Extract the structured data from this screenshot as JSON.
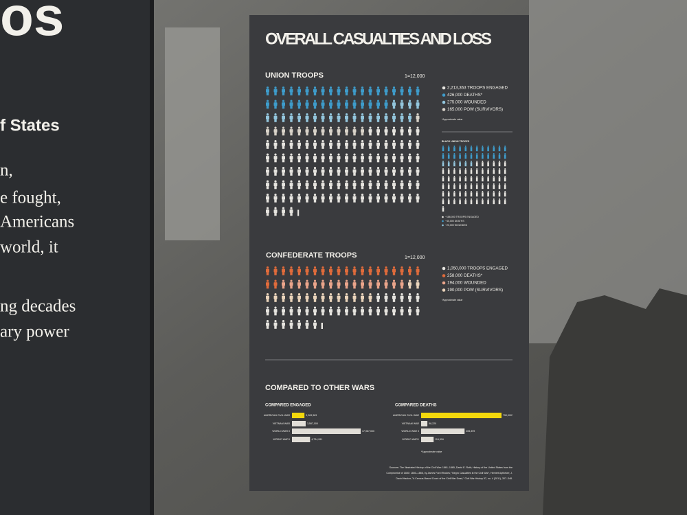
{
  "left_panel": {
    "heading": "os",
    "subheading": "f States",
    "lines": [
      "n,",
      "e fought,",
      "Americans",
      "world, it",
      "ng decades",
      "ary power"
    ]
  },
  "panel": {
    "title": "OVERALL CASUALTIES AND LOSS",
    "union": {
      "title": "UNION TROOPS",
      "unit": 12000,
      "unit_label": "1=12,000",
      "groups": [
        {
          "name": "engaged",
          "value": 2213363,
          "label": "2,213,363 TROOPS ENGAGED",
          "color": "#e6e4df"
        },
        {
          "name": "deaths",
          "value": 426000,
          "label": "426,000 DEATHS*",
          "color": "#3e9ccb"
        },
        {
          "name": "wounded",
          "value": 275000,
          "label": "275,000 WOUNDED",
          "color": "#93c6dd"
        },
        {
          "name": "pow",
          "value": 165000,
          "label": "165,000 POW (SURVIVORS)",
          "color": "#d9d3c9"
        }
      ],
      "note": "*Approximate value"
    },
    "black_union": {
      "title": "BLACK UNION TROOPS",
      "legend": [
        "~186,000 TROOPS ENGAGED",
        "~40,000 DEATHS",
        "~20,000 WOUNDED"
      ]
    },
    "confederate": {
      "title": "CONFEDERATE TROOPS",
      "unit": 12000,
      "unit_label": "1=12,000",
      "groups": [
        {
          "name": "engaged",
          "value": 1050000,
          "label": "1,050,000 TROOPS ENGAGED",
          "color": "#e6e4df"
        },
        {
          "name": "deaths",
          "value": 258000,
          "label": "258,000 DEATHS*",
          "color": "#e06b3b"
        },
        {
          "name": "wounded",
          "value": 194000,
          "label": "194,000 WOUNDED",
          "color": "#eba58b"
        },
        {
          "name": "pow",
          "value": 190000,
          "label": "190,000 POW (SURVIVORS)",
          "color": "#ead4bb"
        }
      ],
      "note": "*Approximate value"
    },
    "compare": {
      "title": "COMPARED TO OTHER WARS",
      "engaged": {
        "title": "COMPARED ENGAGED",
        "items": [
          {
            "label": "AMERICAN CIVIL WAR",
            "value": 3263363,
            "value_label": "3,263,363"
          },
          {
            "label": "VIETNAM WAR",
            "value": 3587000,
            "value_label": "3,587,000"
          },
          {
            "label": "WORLD WAR II",
            "value": 17987000,
            "value_label": "17,987,000"
          },
          {
            "label": "WORLD WAR I",
            "value": 4734991,
            "value_label": "4,734,991"
          }
        ]
      },
      "deaths": {
        "title": "COMPARED DEATHS",
        "items": [
          {
            "label": "AMERICAN CIVIL WAR",
            "value": 750000,
            "value_label": "750,000*"
          },
          {
            "label": "VIETNAM WAR",
            "value": 58220,
            "value_label": "58,220"
          },
          {
            "label": "WORLD WAR II",
            "value": 405399,
            "value_label": "405,399"
          },
          {
            "label": "WORLD WAR I",
            "value": 116516,
            "value_label": "116,516"
          }
        ],
        "note": "*Approximate value"
      }
    },
    "sources": [
      "Sources: The Illustrated History of the Civil War: 1861–1865, David E. Roth; History of the United States from the",
      "Compromise of 1850: 1850–1866, by James Ford Rhodes; \"Negro Casualties in the Civil War\", Herbert Aptheker; J.",
      "David Hacker, \"A Census-Based Count of the Civil War Dead,\" Civil War History 57, no. 4 (2011), 307–348."
    ]
  }
}
